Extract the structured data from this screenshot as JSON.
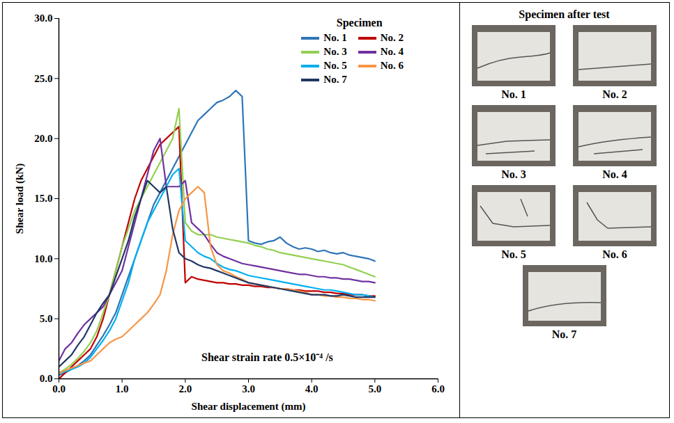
{
  "chart_data": {
    "type": "line",
    "x_label": "Shear displacement (mm)",
    "y_label": "Shear load (kN)",
    "annotation": "Shear strain rate 0.5×10⁻⁴ /s",
    "legend_title": "Specimen",
    "legend": "upper right",
    "grid": false,
    "xlim": [
      0,
      6
    ],
    "ylim": [
      0,
      30
    ],
    "xticks": [
      {
        "value": 0,
        "label": "0.0"
      },
      {
        "value": 1,
        "label": "1.0"
      },
      {
        "value": 2,
        "label": "2.0"
      },
      {
        "value": 3,
        "label": "3.0"
      },
      {
        "value": 4,
        "label": "4.0"
      },
      {
        "value": 5,
        "label": "5.0"
      },
      {
        "value": 6,
        "label": "6.0"
      }
    ],
    "yticks": [
      {
        "value": 0,
        "label": "0.0"
      },
      {
        "value": 5,
        "label": "5.0"
      },
      {
        "value": 10,
        "label": "10.0"
      },
      {
        "value": 15,
        "label": "15.0"
      },
      {
        "value": 20,
        "label": "20.0"
      },
      {
        "value": 25,
        "label": "25.0"
      },
      {
        "value": 30,
        "label": "30.0"
      }
    ],
    "x": [
      0,
      0.1,
      0.2,
      0.3,
      0.4,
      0.5,
      0.6,
      0.7,
      0.8,
      0.9,
      1.0,
      1.1,
      1.2,
      1.3,
      1.4,
      1.5,
      1.6,
      1.7,
      1.8,
      1.9,
      2.0,
      2.1,
      2.2,
      2.3,
      2.4,
      2.5,
      2.6,
      2.7,
      2.8,
      2.9,
      3.0,
      3.1,
      3.2,
      3.3,
      3.4,
      3.5,
      3.6,
      3.7,
      3.8,
      3.9,
      4.0,
      4.1,
      4.2,
      4.3,
      4.4,
      4.5,
      4.6,
      4.7,
      4.8,
      4.9,
      5.0
    ],
    "series": [
      {
        "name": "No. 1",
        "color": "#2e75b6",
        "values": [
          0.3,
          0.5,
          0.8,
          1.1,
          1.5,
          2,
          2.8,
          3.6,
          4.5,
          5.5,
          7,
          8.5,
          10,
          11.5,
          13,
          14.5,
          15.5,
          16.5,
          17.5,
          18.5,
          19.5,
          20.5,
          21.5,
          22,
          22.5,
          23,
          23.2,
          23.5,
          24,
          23.5,
          11.5,
          11.3,
          11.2,
          11.4,
          11.5,
          11.8,
          11.3,
          11,
          10.8,
          10.9,
          10.8,
          10.6,
          10.7,
          10.5,
          10.4,
          10.5,
          10.3,
          10.2,
          10.1,
          10,
          9.8
        ]
      },
      {
        "name": "No. 2",
        "color": "#c00000",
        "values": [
          0,
          0.5,
          1,
          1.5,
          2,
          2.5,
          3.5,
          5,
          7,
          9,
          11,
          13,
          15,
          16.5,
          17.5,
          18.5,
          19.5,
          20,
          20.5,
          21,
          8,
          8.5,
          8.3,
          8.2,
          8.1,
          8,
          8,
          7.9,
          7.9,
          7.8,
          7.8,
          7.7,
          7.7,
          7.6,
          7.6,
          7.5,
          7.5,
          7.4,
          7.4,
          7.3,
          7.3,
          7.3,
          7.2,
          7.2,
          7.1,
          7.1,
          7,
          7,
          7,
          6.9,
          6.9
        ]
      },
      {
        "name": "No. 3",
        "color": "#92d050",
        "values": [
          0.5,
          0.8,
          1.2,
          1.7,
          2.3,
          3,
          4,
          5.5,
          7,
          9,
          11,
          12.5,
          14,
          15,
          16,
          17,
          18,
          19,
          20,
          22.5,
          13,
          12.3,
          12,
          12,
          12,
          11.8,
          11.7,
          11.6,
          11.5,
          11.4,
          11.3,
          11.1,
          11,
          10.8,
          10.7,
          10.5,
          10.4,
          10.3,
          10.2,
          10.1,
          10,
          9.9,
          9.8,
          9.7,
          9.6,
          9.5,
          9.3,
          9.1,
          8.9,
          8.7,
          8.5
        ]
      },
      {
        "name": "No. 4",
        "color": "#7030a0",
        "values": [
          1.5,
          2.5,
          3,
          3.8,
          4.5,
          5,
          5.5,
          6,
          7,
          8,
          9,
          11,
          13,
          15,
          17,
          19,
          20,
          16,
          16,
          16,
          16.5,
          13,
          12.5,
          12,
          11.2,
          10.5,
          10.2,
          10,
          9.8,
          9.6,
          9.5,
          9.4,
          9.3,
          9.2,
          9.1,
          9,
          8.9,
          8.8,
          8.7,
          8.7,
          8.6,
          8.5,
          8.5,
          8.4,
          8.4,
          8.3,
          8.3,
          8.2,
          8.1,
          8.1,
          8
        ]
      },
      {
        "name": "No. 5",
        "color": "#00b0f0",
        "values": [
          0.5,
          0.6,
          0.8,
          1,
          1.3,
          1.8,
          2.5,
          3.2,
          4,
          5,
          6.5,
          8,
          10,
          11.5,
          13,
          14,
          15,
          16,
          17,
          17.5,
          11.5,
          11,
          10.5,
          10.2,
          10,
          9.6,
          9.3,
          9.1,
          9,
          8.8,
          8.6,
          8.5,
          8.4,
          8.3,
          8.2,
          8.1,
          8,
          7.9,
          7.8,
          7.7,
          7.6,
          7.5,
          7.4,
          7.4,
          7.3,
          7.2,
          7.1,
          7,
          7,
          6.9,
          6.8
        ]
      },
      {
        "name": "No. 6",
        "color": "#f79646",
        "values": [
          0.5,
          0.7,
          0.9,
          1.1,
          1.3,
          1.5,
          2,
          2.5,
          3,
          3.3,
          3.5,
          4,
          4.5,
          5,
          5.5,
          6.2,
          7,
          9,
          12,
          14,
          15,
          15.5,
          16,
          15.5,
          11,
          9.5,
          9,
          8.8,
          8.5,
          8.3,
          8,
          7.9,
          7.8,
          7.7,
          7.6,
          7.5,
          7.5,
          7.4,
          7.3,
          7.2,
          7,
          7,
          6.9,
          6.9,
          6.8,
          6.8,
          6.7,
          6.7,
          6.6,
          6.6,
          6.5
        ]
      },
      {
        "name": "No. 7",
        "color": "#1f3864",
        "values": [
          1,
          1.5,
          2,
          2.8,
          3.5,
          4.5,
          5.5,
          6.3,
          7,
          8.5,
          10,
          11.5,
          13.5,
          15,
          16.5,
          16,
          15.5,
          16,
          12.5,
          10.5,
          10,
          9.8,
          9.5,
          9.3,
          9.2,
          9,
          8.8,
          8.6,
          8.4,
          8.2,
          8,
          7.9,
          7.8,
          7.7,
          7.6,
          7.5,
          7.4,
          7.3,
          7.2,
          7.1,
          7,
          7,
          7,
          6.9,
          6.9,
          7,
          6.9,
          6.8,
          6.8,
          6.8,
          6.8
        ]
      }
    ]
  },
  "side_panel": {
    "title": "Specimen after test",
    "labels": [
      "No. 1",
      "No. 2",
      "No. 3",
      "No. 4",
      "No. 5",
      "No. 6",
      "No. 7"
    ]
  }
}
